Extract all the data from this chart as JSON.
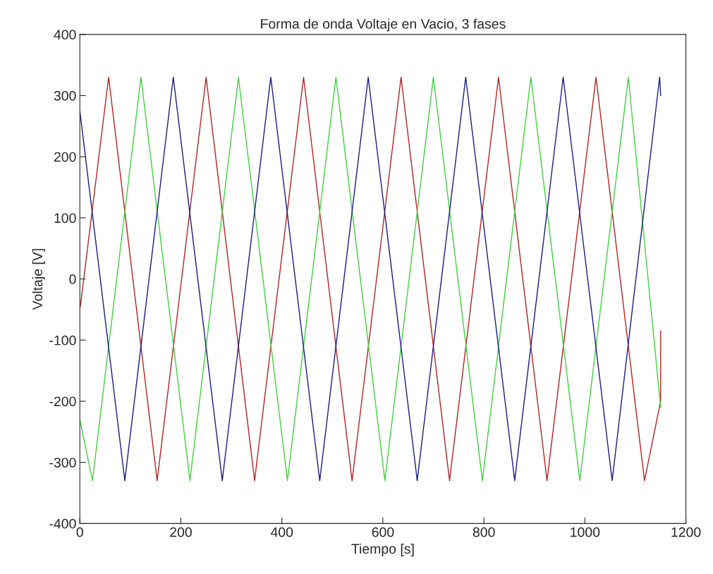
{
  "chart_data": {
    "type": "line",
    "title": "Forma de onda Voltaje en Vacio, 3 fases",
    "xlabel": "Tiempo [s]",
    "ylabel": "Voltaje [V]",
    "xlim": [
      0,
      1200
    ],
    "xticks": [
      0,
      200,
      400,
      600,
      800,
      1000,
      1200
    ],
    "ylim": [
      -400,
      400
    ],
    "yticks": [
      -400,
      -300,
      -200,
      -100,
      0,
      100,
      200,
      300,
      400
    ],
    "grid": false,
    "series": [
      {
        "color": "#b22222",
        "x": [
          0,
          1,
          57,
          153,
          250,
          346,
          443,
          539,
          636,
          732,
          829,
          925,
          1022,
          1118,
          1150,
          1150
        ],
        "values": [
          -40,
          -45,
          330,
          -330,
          330,
          -330,
          330,
          -330,
          330,
          -330,
          330,
          -330,
          330,
          -330,
          -200,
          -85
        ]
      },
      {
        "color": "#40d040",
        "x": [
          0,
          25,
          121,
          218,
          314,
          411,
          507,
          604,
          700,
          797,
          893,
          990,
          1086,
          1150
        ],
        "values": [
          -230,
          -330,
          330,
          -330,
          330,
          -330,
          330,
          -330,
          330,
          -330,
          330,
          -330,
          330,
          -210
        ]
      },
      {
        "color": "#1a1a80",
        "x": [
          0,
          89,
          185,
          282,
          378,
          475,
          571,
          668,
          764,
          861,
          957,
          1054,
          1148,
          1150
        ],
        "values": [
          275,
          -330,
          330,
          -330,
          330,
          -330,
          330,
          -330,
          330,
          -330,
          330,
          -330,
          330,
          300
        ]
      }
    ]
  }
}
